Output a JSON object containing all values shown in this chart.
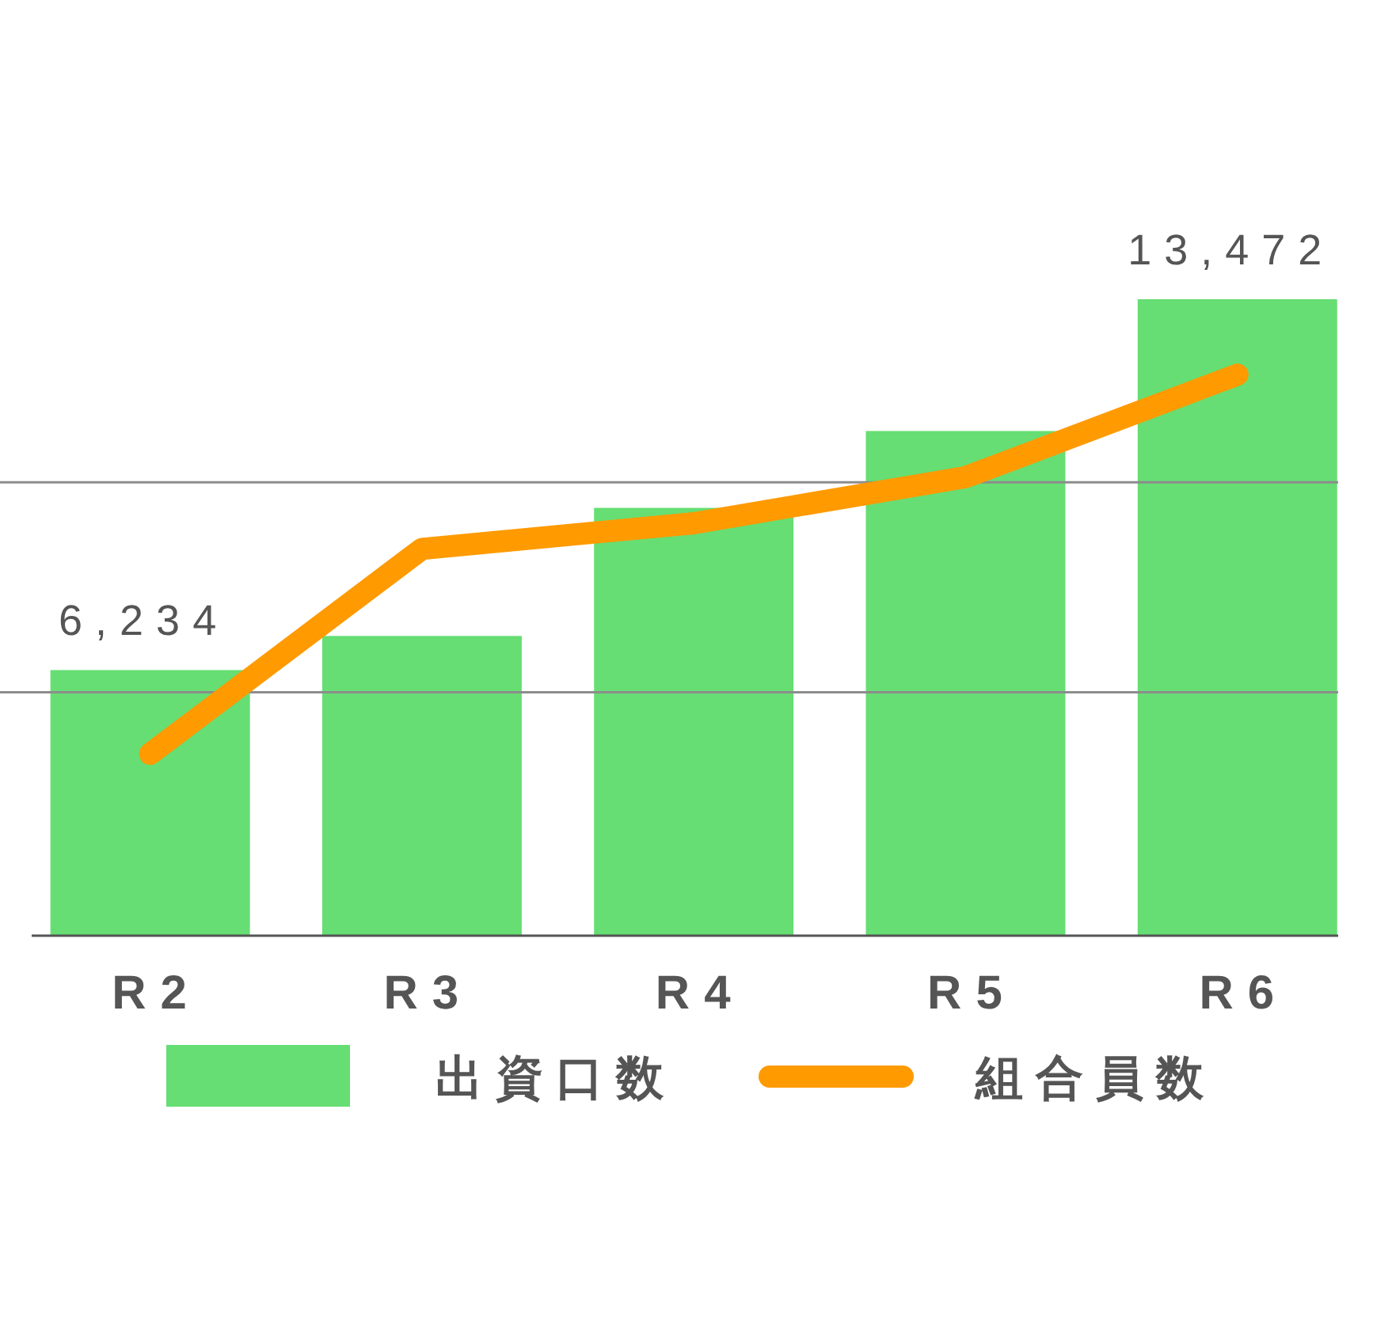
{
  "chart_data": {
    "type": "bar",
    "categories": [
      "R2",
      "R3",
      "R4",
      "R5",
      "R6"
    ],
    "series": [
      {
        "name": "出資口数",
        "color": "#66de73",
        "values": [
          6234,
          6900,
          9400,
          10900,
          13472
        ],
        "value_labels": [
          "6,234",
          null,
          null,
          null,
          "13,472"
        ]
      },
      {
        "name": "組合員数",
        "type": "line",
        "color": "#ff9a00",
        "values": [
          4600,
          8600,
          9100,
          10000,
          12000
        ]
      }
    ],
    "ylim": [
      1050,
      13472
    ],
    "ref_lines": [
      {
        "axis": "y",
        "value": 5800,
        "color": "#8c8c8c"
      },
      {
        "axis": "y",
        "value": 9900,
        "color": "#8c8c8c"
      }
    ],
    "tick_labels": "x",
    "legend": "bottom"
  }
}
